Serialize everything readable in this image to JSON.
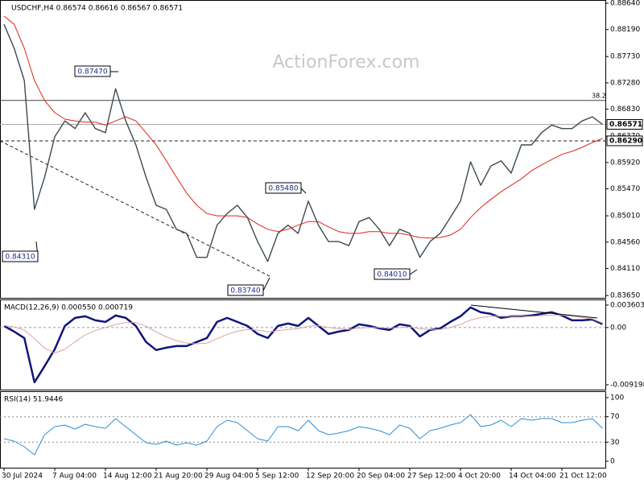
{
  "chart_data": [
    {
      "type": "line",
      "title": "USDCHF,H4  0.86574 0.86616 0.86567 0.86571",
      "watermark": "ActionForex.com",
      "ylim": [
        0.8365,
        0.8864
      ],
      "yticks": [
        {
          "value": 0.8864,
          "label": "0.88640"
        },
        {
          "value": 0.8819,
          "label": "0.88190"
        },
        {
          "value": 0.8773,
          "label": "0.87730"
        },
        {
          "value": 0.8728,
          "label": "0.87280"
        },
        {
          "value": 0.8683,
          "label": "0.86830"
        },
        {
          "value": 0.8637,
          "label": "0.86370"
        },
        {
          "value": 0.8592,
          "label": "0.85920"
        },
        {
          "value": 0.8547,
          "label": "0.85470"
        },
        {
          "value": 0.8501,
          "label": "0.85010"
        },
        {
          "value": 0.8456,
          "label": "0.84560"
        },
        {
          "value": 0.8411,
          "label": "0.84110"
        },
        {
          "value": 0.8365,
          "label": "0.83650"
        }
      ],
      "series": [
        {
          "name": "USDCHF",
          "color": "#3c4a52",
          "values": [
            0.8828,
            0.8787,
            0.8732,
            0.8512,
            0.8567,
            0.8636,
            0.8663,
            0.865,
            0.8677,
            0.865,
            0.8643,
            0.8718,
            0.8663,
            0.8622,
            0.8567,
            0.8519,
            0.8512,
            0.8478,
            0.8471,
            0.843,
            0.843,
            0.8485,
            0.8505,
            0.8519,
            0.8498,
            0.8457,
            0.8423,
            0.8471,
            0.8485,
            0.8471,
            0.8526,
            0.8485,
            0.8457,
            0.8457,
            0.845,
            0.8491,
            0.8498,
            0.8478,
            0.845,
            0.8478,
            0.8471,
            0.843,
            0.8457,
            0.8471,
            0.8498,
            0.8526,
            0.8593,
            0.8553,
            0.8586,
            0.8595,
            0.8574,
            0.8622,
            0.8622,
            0.8643,
            0.8656,
            0.865,
            0.865,
            0.8663,
            0.867,
            0.86571
          ]
        },
        {
          "name": "MA",
          "color": "#e0231c",
          "values": [
            0.8842,
            0.8828,
            0.8787,
            0.8732,
            0.8698,
            0.8677,
            0.8666,
            0.8663,
            0.8661,
            0.8661,
            0.8656,
            0.8663,
            0.867,
            0.8663,
            0.8643,
            0.8622,
            0.8595,
            0.8567,
            0.854,
            0.8519,
            0.8505,
            0.8501,
            0.8501,
            0.8501,
            0.8498,
            0.8487,
            0.8478,
            0.8474,
            0.8478,
            0.8485,
            0.8491,
            0.8491,
            0.8482,
            0.8474,
            0.8471,
            0.8471,
            0.8474,
            0.8474,
            0.8471,
            0.8471,
            0.8468,
            0.8464,
            0.8463,
            0.8464,
            0.8468,
            0.8478,
            0.8498,
            0.8515,
            0.8529,
            0.8542,
            0.8553,
            0.8564,
            0.8578,
            0.8588,
            0.8597,
            0.8606,
            0.8611,
            0.8618,
            0.8626,
            0.8633
          ]
        }
      ],
      "fib_level": {
        "label": "38.2",
        "value": 0.8698
      },
      "last_price": 0.86571,
      "support_line": {
        "value": 0.8629,
        "label": "0.86290"
      },
      "annotations": [
        "0.87470",
        "0.84310",
        "0.85480",
        "0.83740",
        "0.84010"
      ]
    },
    {
      "type": "line",
      "title": "MACD(12,26,9) 0.000550 0.000719",
      "ylim": [
        -0.00972,
        0.00438
      ],
      "yticks": [
        0.003603,
        {
          "value": 0,
          "label": "0.00"
        },
        -0.009198
      ],
      "zero_line": true,
      "series": [
        {
          "name": "MACD",
          "color": "#10157a",
          "values": [
            0.000259,
            -0.000647,
            -0.001681,
            -0.0088,
            -0.0062,
            -0.0035,
            0.000259,
            0.001552,
            0.00181,
            0.001164,
            0.000905,
            0.00194,
            0.001552,
            0.000259,
            -0.002327,
            -0.00362,
            -0.003233,
            -0.002974,
            -0.002974,
            -0.002327,
            -0.001681,
            0.000905,
            0.001552,
            0.000905,
            0.000259,
            -0.001034,
            -0.001681,
            0.000259,
            0.000647,
            0.000259,
            0.001552,
            0.000259,
            -0.001034,
            -0.000647,
            -0.000388,
            0.000517,
            0.000259,
            -0.000129,
            -0.000388,
            0.000517,
            0.000259,
            -0.001422,
            -0.000388,
            -0.000129,
            0.000905,
            0.00181,
            0.003233,
            0.002457,
            0.002198,
            0.001552,
            0.00181,
            0.00181,
            0.00194,
            0.002198,
            0.002457,
            0.00194,
            0.001164,
            0.001164,
            0.001293,
            0.00055
          ]
        },
        {
          "name": "Signal",
          "color": "#d8a4a4",
          "values": [
            0.0003,
            0.0001,
            -0.0004,
            -0.0018,
            -0.0033,
            -0.0041,
            -0.0035,
            -0.0023,
            -0.0012,
            -0.0005,
            0,
            0.0005,
            0.0008,
            0.0008,
            0.0002,
            -0.0007,
            -0.0015,
            -0.0021,
            -0.0025,
            -0.0026,
            -0.0025,
            -0.0018,
            -0.0011,
            -0.0006,
            -0.0003,
            -0.0004,
            -0.0007,
            -0.0005,
            -0.0003,
            -0.0002,
            0.0002,
            0.0003,
            0,
            -0.0002,
            -0.0003,
            -0.0001,
            0,
            0,
            -0.0001,
            0,
            0.0001,
            -0.0002,
            -0.0003,
            -0.0003,
            0,
            0.0005,
            0.0012,
            0.0016,
            0.0018,
            0.0018,
            0.0018,
            0.0018,
            0.0018,
            0.0019,
            0.002,
            0.002,
            0.0018,
            0.0016,
            0.0014,
            0.000719
          ]
        }
      ]
    },
    {
      "type": "line",
      "title": "RSI(14) 51.9446",
      "ylim": [
        0,
        100
      ],
      "yticks": [
        100,
        70,
        30,
        0
      ],
      "grid": true,
      "categories": [
        "30 Jul 2024",
        null,
        null,
        null,
        null,
        "7 Aug 04:00",
        null,
        null,
        null,
        null,
        "14 Aug 12:00",
        null,
        null,
        null,
        null,
        "21 Aug 20:00",
        null,
        null,
        null,
        null,
        "29 Aug 04:00",
        null,
        null,
        null,
        null,
        "5 Sep 12:00",
        null,
        null,
        null,
        null,
        "12 Sep 20:00",
        null,
        null,
        null,
        null,
        "20 Sep 04:00",
        null,
        null,
        null,
        null,
        "27 Sep 12:00",
        null,
        null,
        null,
        null,
        "4 Oct 20:00",
        null,
        null,
        null,
        null,
        "14 Oct 04:00",
        null,
        null,
        null,
        null,
        "21 Oct 12:00",
        null,
        null,
        null,
        null
      ],
      "series": [
        {
          "name": "RSI",
          "color": "#2c8fd6",
          "values": [
            35.4,
            31.6,
            22.8,
            10.1,
            41.8,
            54.4,
            57,
            50.6,
            58.2,
            54.4,
            51.9,
            67.1,
            54.4,
            41.8,
            29.1,
            26.6,
            31.6,
            25.3,
            29.1,
            25.3,
            31.6,
            54.4,
            64.6,
            60.8,
            48.1,
            35.4,
            31.6,
            54.4,
            54.4,
            48.1,
            64.6,
            48.1,
            41.8,
            44.3,
            48.1,
            54.4,
            51.9,
            48.1,
            41.8,
            57,
            51.9,
            35.4,
            48.1,
            51.9,
            57,
            60.8,
            73.4,
            54.4,
            57,
            64.6,
            54.4,
            67.1,
            64.6,
            67.1,
            67.1,
            60.8,
            60.8,
            64.6,
            67.1,
            51.9446
          ]
        }
      ]
    }
  ]
}
